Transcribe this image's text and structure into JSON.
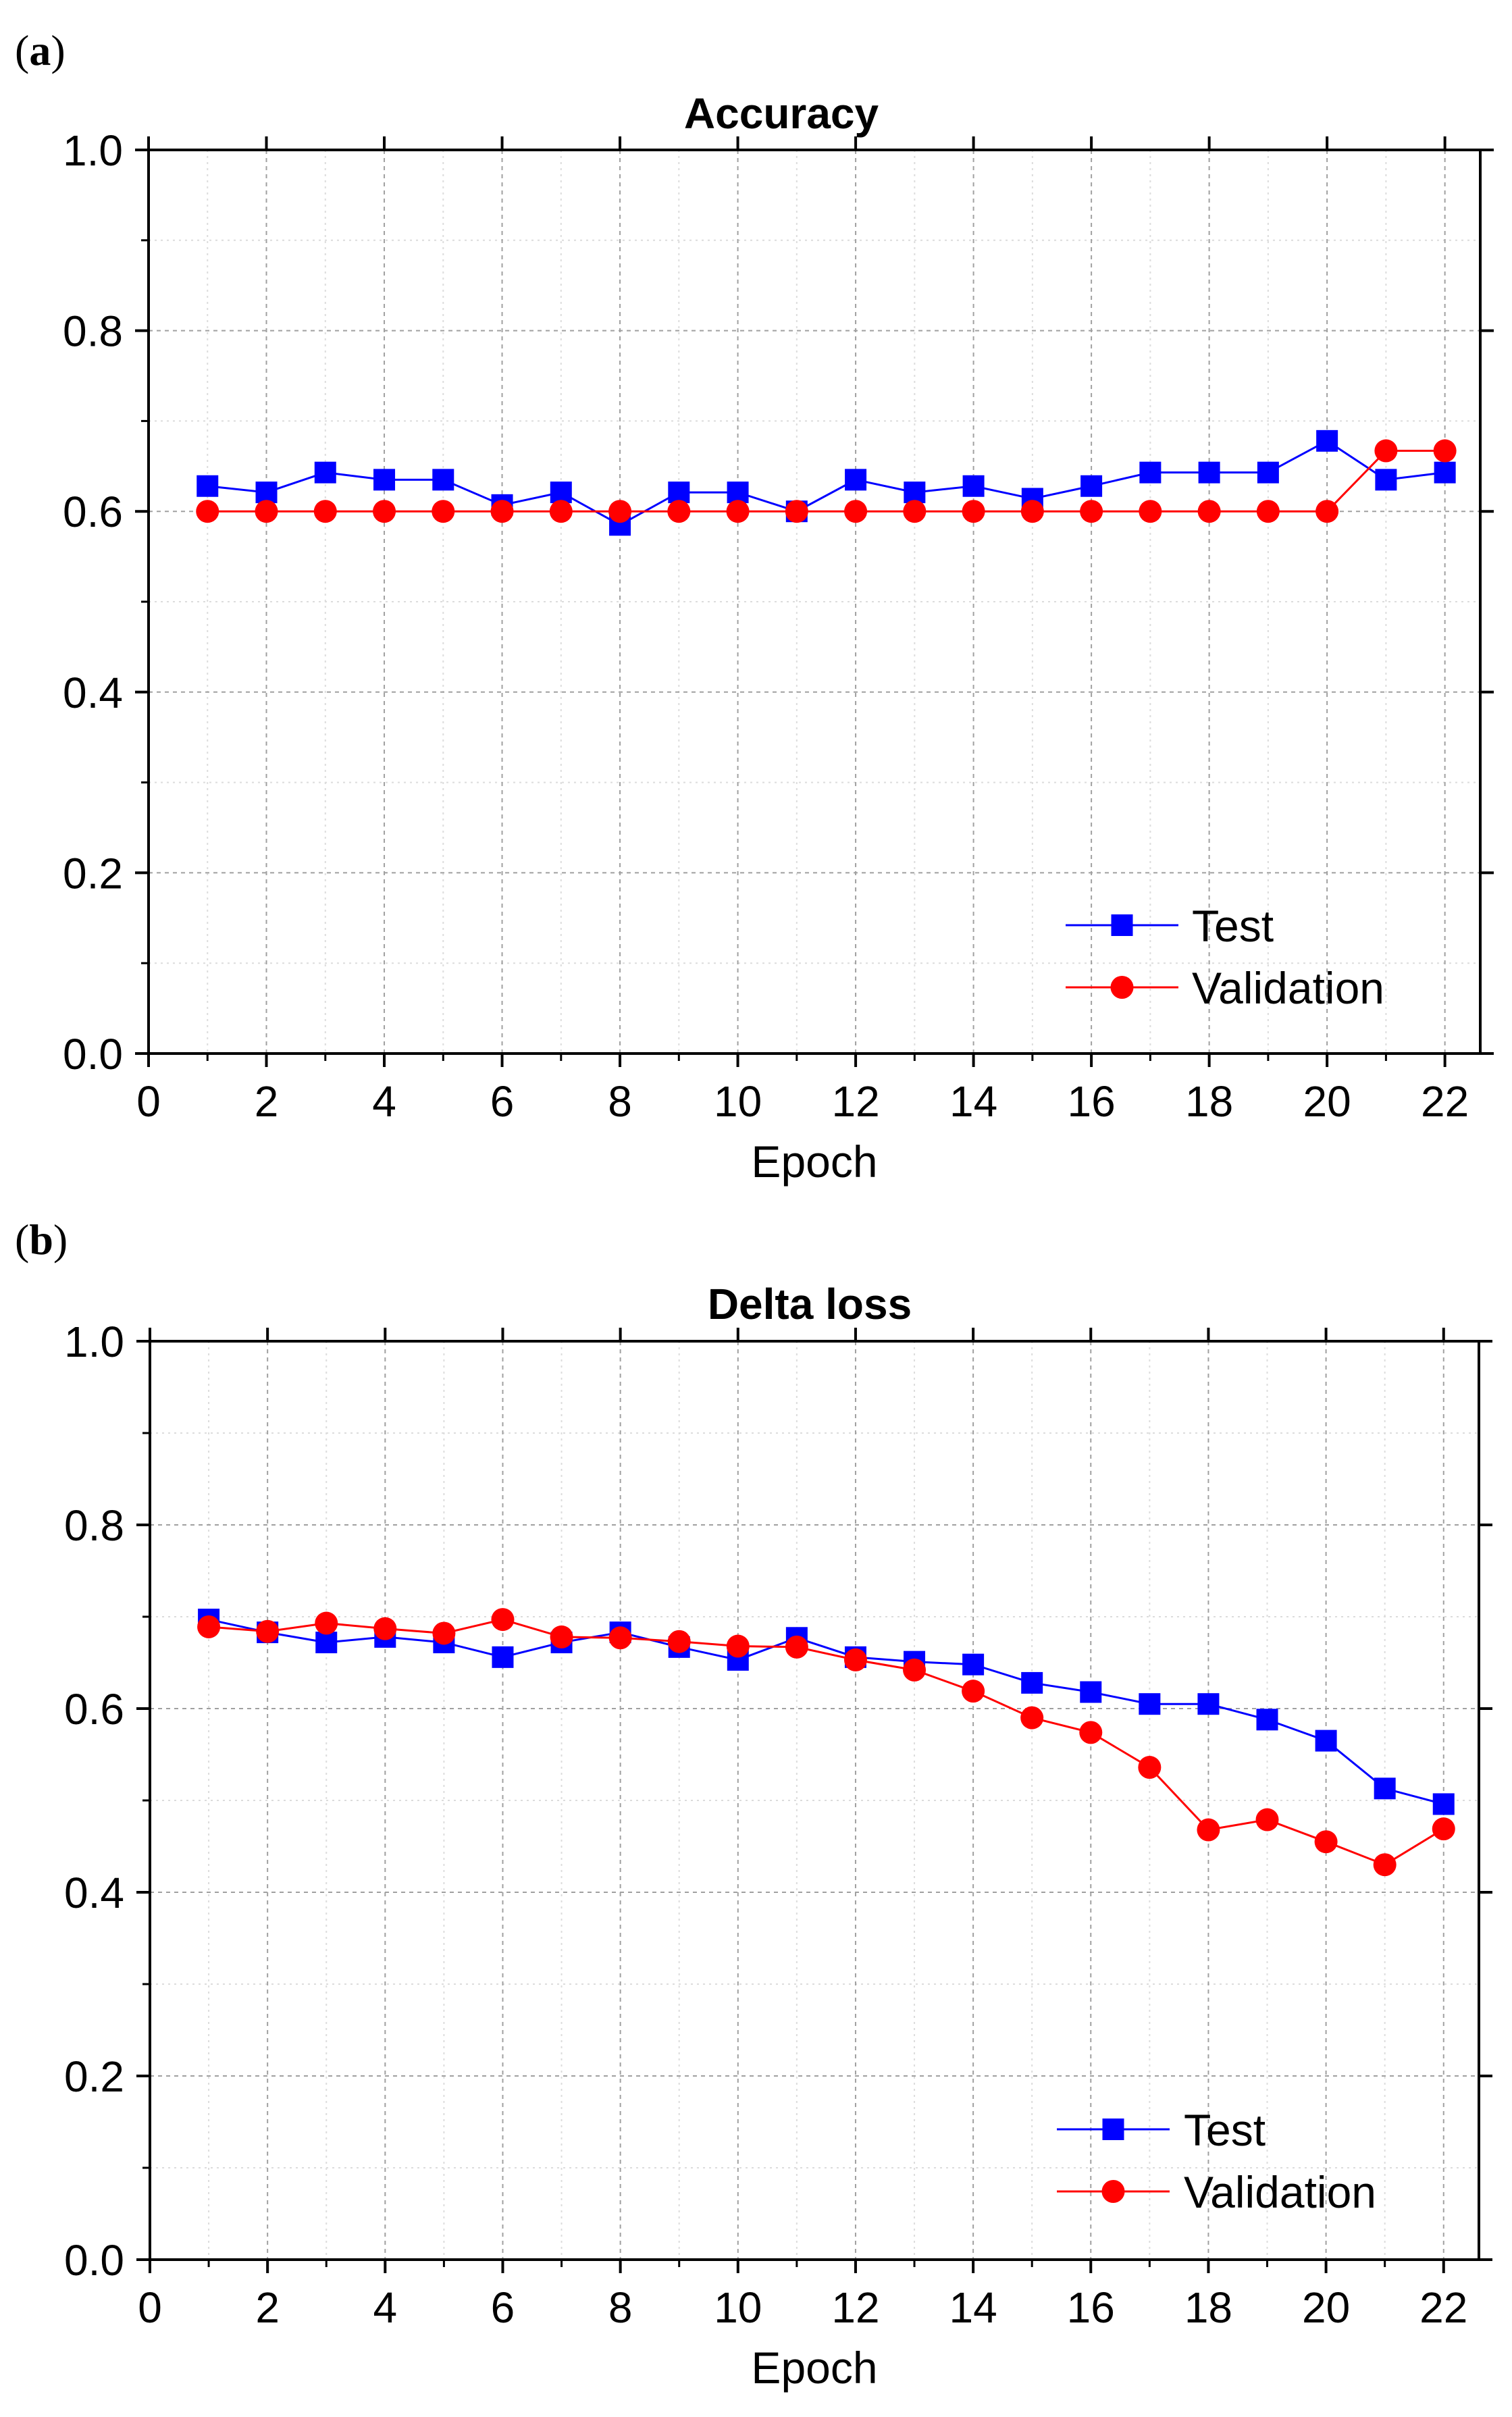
{
  "panels": [
    {
      "label": "a",
      "chart_data": {
        "type": "line",
        "title": "Accuracy",
        "xlabel": "Epoch",
        "ylabel": "",
        "xlim": [
          0,
          22.6
        ],
        "ylim": [
          0,
          1.0
        ],
        "xticks": [
          0,
          2,
          4,
          6,
          8,
          10,
          12,
          14,
          16,
          18,
          20,
          22
        ],
        "yticks": [
          0.0,
          0.2,
          0.4,
          0.6,
          0.8,
          1.0
        ],
        "ytick_labels": [
          "0.0",
          "0.2",
          "0.4",
          "0.6",
          "0.8",
          "1.0"
        ],
        "grid": true,
        "legend_position": "bottom-right",
        "x": [
          1,
          2,
          3,
          4,
          5,
          6,
          7,
          8,
          9,
          10,
          11,
          12,
          13,
          14,
          15,
          16,
          17,
          18,
          19,
          20,
          21,
          22
        ],
        "series": [
          {
            "name": "Test",
            "color": "#0000ff",
            "marker": "square",
            "values": [
              0.628,
              0.621,
              0.643,
              0.635,
              0.635,
              0.607,
              0.621,
              0.585,
              0.621,
              0.621,
              0.6,
              0.635,
              0.621,
              0.628,
              0.614,
              0.628,
              0.643,
              0.643,
              0.643,
              0.678,
              0.635,
              0.643
            ]
          },
          {
            "name": "Validation",
            "color": "#ff0000",
            "marker": "circle",
            "values": [
              0.6,
              0.6,
              0.6,
              0.6,
              0.6,
              0.6,
              0.6,
              0.6,
              0.6,
              0.6,
              0.6,
              0.6,
              0.6,
              0.6,
              0.6,
              0.6,
              0.6,
              0.6,
              0.6,
              0.6,
              0.667,
              0.667
            ]
          }
        ]
      }
    },
    {
      "label": "b",
      "chart_data": {
        "type": "line",
        "title": "Delta loss",
        "xlabel": "Epoch",
        "ylabel": "",
        "xlim": [
          0,
          22.6
        ],
        "ylim": [
          0,
          1.0
        ],
        "xticks": [
          0,
          2,
          4,
          6,
          8,
          10,
          12,
          14,
          16,
          18,
          20,
          22
        ],
        "yticks": [
          0.0,
          0.2,
          0.4,
          0.6,
          0.8,
          1.0
        ],
        "ytick_labels": [
          "0.0",
          "0.2",
          "0.4",
          "0.6",
          "0.8",
          "1.0"
        ],
        "grid": true,
        "legend_position": "bottom-right",
        "x": [
          1,
          2,
          3,
          4,
          5,
          6,
          7,
          8,
          9,
          10,
          11,
          12,
          13,
          14,
          15,
          16,
          17,
          18,
          19,
          20,
          21,
          22
        ],
        "series": [
          {
            "name": "Test",
            "color": "#0000ff",
            "marker": "square",
            "values": [
              0.697,
              0.683,
              0.672,
              0.678,
              0.672,
              0.656,
              0.672,
              0.683,
              0.667,
              0.653,
              0.677,
              0.656,
              0.651,
              0.648,
              0.628,
              0.618,
              0.605,
              0.605,
              0.588,
              0.565,
              0.513,
              0.496
            ]
          },
          {
            "name": "Validation",
            "color": "#ff0000",
            "marker": "circle",
            "values": [
              0.689,
              0.684,
              0.693,
              0.687,
              0.682,
              0.697,
              0.678,
              0.677,
              0.673,
              0.668,
              0.667,
              0.653,
              0.642,
              0.619,
              0.59,
              0.574,
              0.536,
              0.468,
              0.479,
              0.455,
              0.43,
              0.469
            ]
          }
        ]
      }
    }
  ]
}
